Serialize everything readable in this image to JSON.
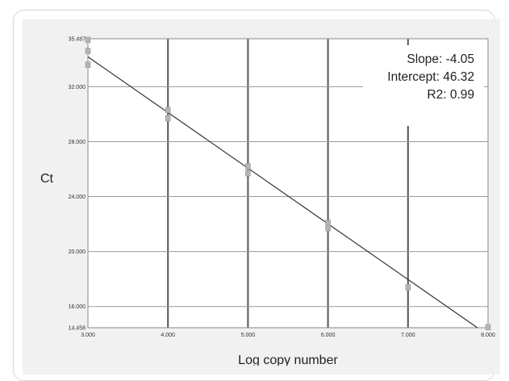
{
  "chart_data": {
    "type": "scatter",
    "xlabel": "Log copy number",
    "ylabel": "Ct",
    "xlim": [
      3.0,
      8.0
    ],
    "ylim": [
      14.458,
      35.487
    ],
    "x_ticks": [
      "3.000",
      "4.000",
      "5.000",
      "6.000",
      "7.000",
      "8.000"
    ],
    "y_ticks": [
      "14.458",
      "16.000",
      "20.000",
      "24.000",
      "28.000",
      "32.000",
      "35.487"
    ],
    "x_tick_values": [
      3.0,
      4.0,
      5.0,
      6.0,
      7.0,
      8.0
    ],
    "y_tick_values": [
      14.458,
      16.0,
      20.0,
      24.0,
      28.0,
      32.0,
      35.487
    ],
    "grid": true,
    "series": [
      {
        "points": [
          {
            "x": 3.0,
            "y": 35.4
          },
          {
            "x": 3.0,
            "y": 34.6
          },
          {
            "x": 3.0,
            "y": 33.6
          },
          {
            "x": 4.0,
            "y": 30.3
          },
          {
            "x": 4.0,
            "y": 29.7
          },
          {
            "x": 5.0,
            "y": 26.2
          },
          {
            "x": 5.0,
            "y": 25.7
          },
          {
            "x": 6.0,
            "y": 22.1
          },
          {
            "x": 6.0,
            "y": 21.7
          },
          {
            "x": 7.0,
            "y": 17.4
          },
          {
            "x": 8.0,
            "y": 14.5
          }
        ]
      }
    ],
    "trendline": {
      "slope": -4.05,
      "intercept": 46.32
    },
    "annotations": {
      "slope": "Slope: -4.05",
      "intercept": "Intercept: 46.32",
      "r2": "R2: 0.99"
    },
    "colors": {
      "plot_background": "#ffffff",
      "panel_background": "#f1f1f1",
      "gridline": "#555555",
      "trendline": "#333333",
      "marker": "#b4b4b4"
    }
  }
}
